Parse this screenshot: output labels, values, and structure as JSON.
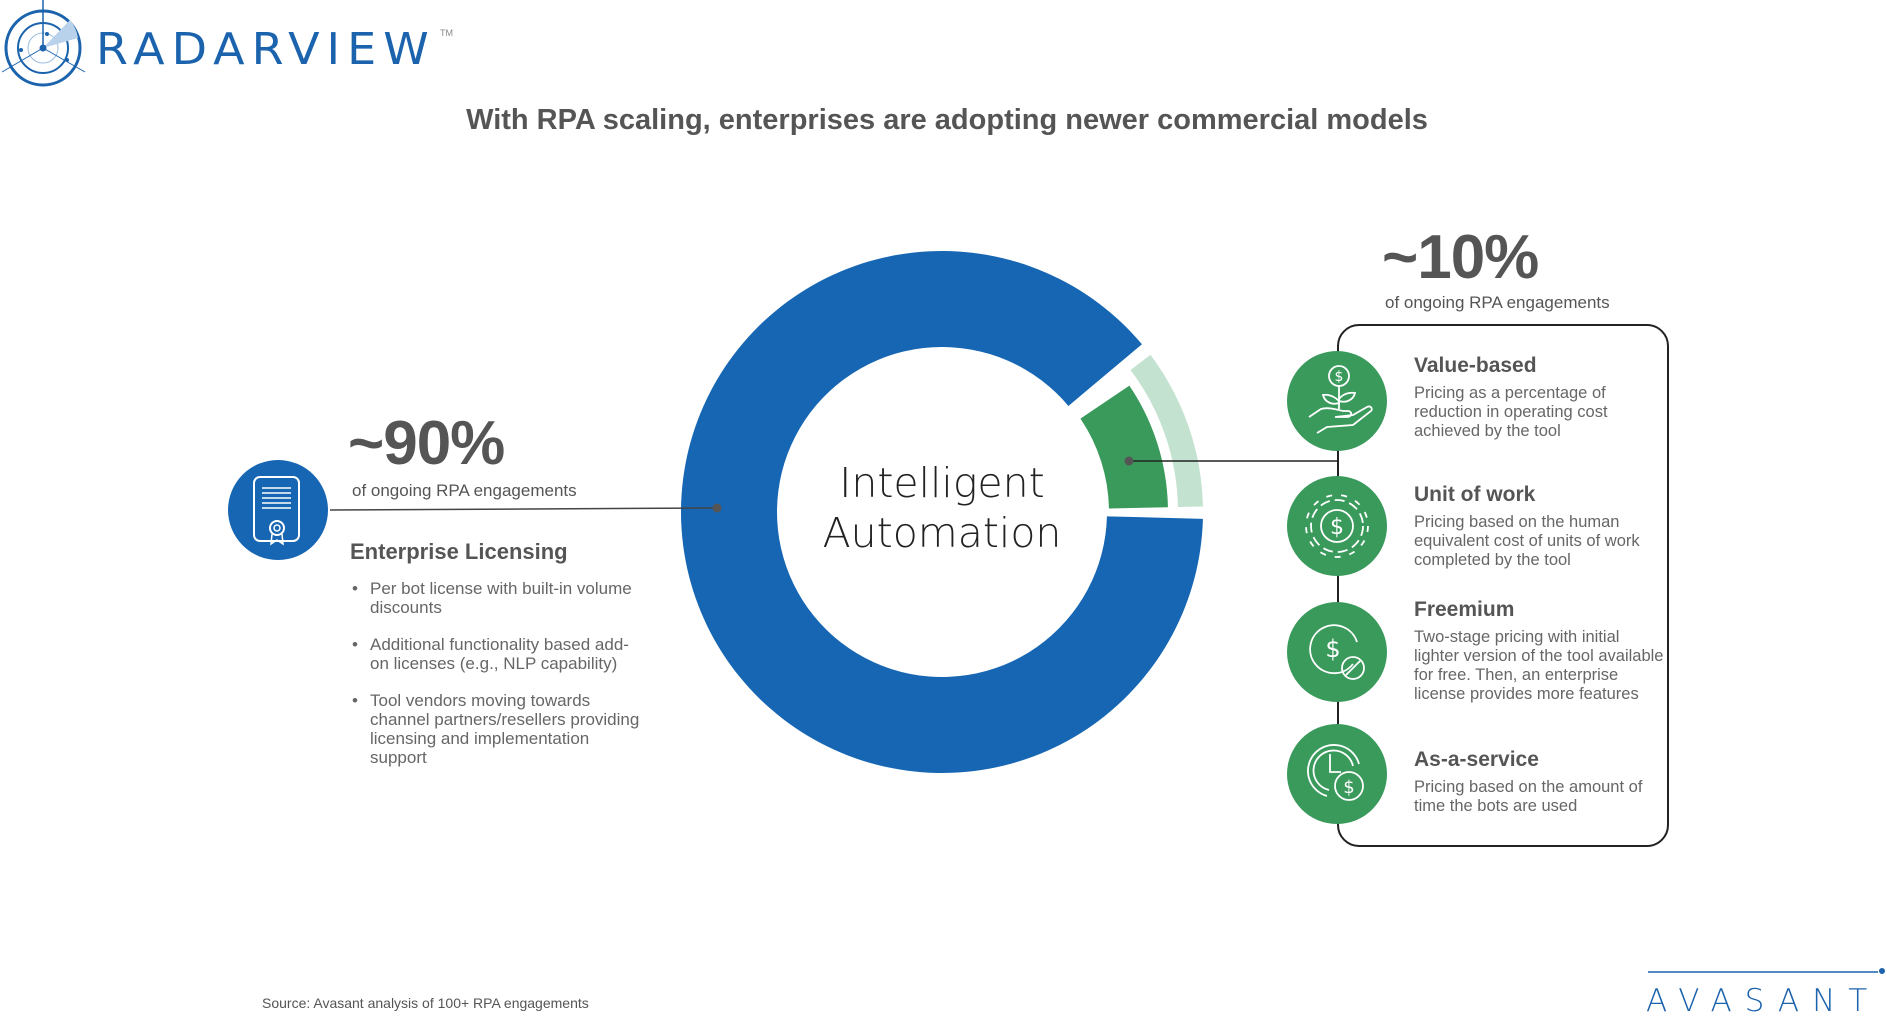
{
  "brand": {
    "logo_text": "RADARVIEW",
    "trademark": "TM",
    "footer_logo": "AVASANT"
  },
  "title": "With RPA scaling, enterprises are adopting newer commercial models",
  "colors": {
    "blue": "#1666b3",
    "green": "#3a9a5c",
    "light_green": "#c4e2d0",
    "text": "#555555"
  },
  "donut": {
    "center_label_line1": "Intelligent",
    "center_label_line2": "Automation",
    "segments": [
      {
        "label": "Enterprise Licensing",
        "percent": 90,
        "color": "#1666b3"
      },
      {
        "label": "Newer commercial models",
        "percent": 10,
        "color": "#3a9a5c"
      }
    ]
  },
  "left": {
    "percent": "~90%",
    "subtitle": "of ongoing RPA engagements",
    "icon": "certificate-icon",
    "heading": "Enterprise Licensing",
    "bullets": [
      "Per bot license with built-in volume discounts",
      "Additional functionality based add-on licenses (e.g., NLP capability)",
      "Tool vendors moving towards channel partners/resellers providing licensing and implementation support"
    ]
  },
  "right": {
    "percent": "~10%",
    "subtitle": "of ongoing RPA engagements",
    "models": [
      {
        "heading": "Value-based",
        "description": "Pricing as a percentage of reduction in operating cost achieved by the tool",
        "icon": "hand-plant-dollar-icon"
      },
      {
        "heading": "Unit of work",
        "description": "Pricing based on the human equivalent cost of units of work completed by the tool",
        "icon": "gear-dollar-icon"
      },
      {
        "heading": "Freemium",
        "description": "Two-stage pricing with initial lighter version of the tool available for free. Then, an enterprise license provides more features",
        "icon": "dollar-free-icon"
      },
      {
        "heading": "As-a-service",
        "description": "Pricing based on the amount of time the bots are used",
        "icon": "clock-dollar-icon"
      }
    ]
  },
  "source": "Source: Avasant analysis of 100+ RPA engagements"
}
